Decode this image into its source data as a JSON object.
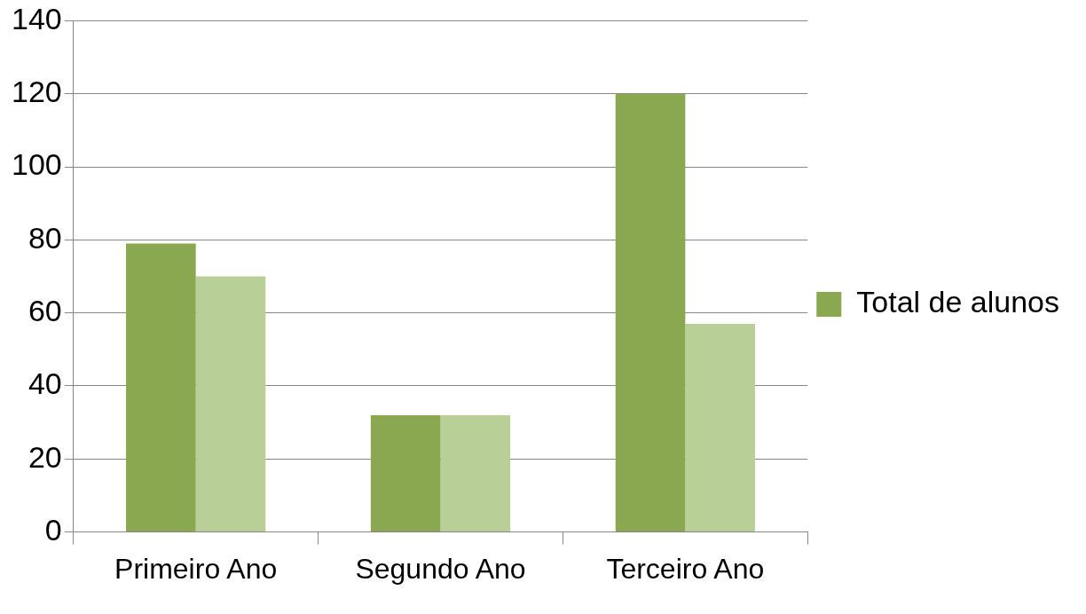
{
  "chart_data": {
    "type": "bar",
    "categories": [
      "Primeiro Ano",
      "Segundo Ano",
      "Terceiro Ano"
    ],
    "series": [
      {
        "name": "Total de alunos",
        "color": "#8aa84f",
        "values": [
          79,
          32,
          120
        ]
      },
      {
        "color": "#b9cf98",
        "values": [
          70,
          32,
          57
        ]
      }
    ],
    "ylim": [
      0,
      140
    ],
    "yticks": [
      0,
      20,
      40,
      60,
      80,
      100,
      120,
      140
    ],
    "grid": "y",
    "legend": "right"
  }
}
